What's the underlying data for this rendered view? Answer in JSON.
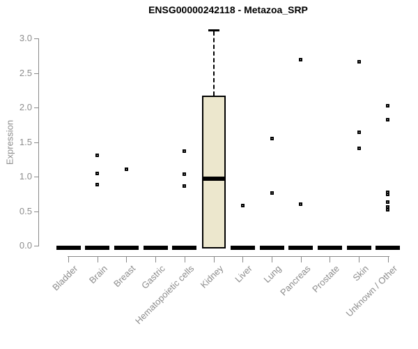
{
  "colors": {
    "box_fill": "#ECE7CD",
    "box_border": "#000000",
    "axis_line": "#888888",
    "axis_text": "#8c8c8c",
    "title_text": "#000000",
    "background": "#ffffff"
  },
  "chart_data": {
    "type": "boxplot",
    "title": "ENSG00000242118 - Metazoa_SRP",
    "xlabel": "",
    "ylabel": "Expression",
    "ylim": [
      0.0,
      3.0
    ],
    "yticks": [
      "0.0",
      "0.5",
      "1.0",
      "1.5",
      "2.0",
      "2.5",
      "3.0"
    ],
    "grid": false,
    "legend": null,
    "categories": [
      "Bladder",
      "Brain",
      "Breast",
      "Gastric",
      "Hematopoietic cells",
      "Kidney",
      "Liver",
      "Lung",
      "Pancreas",
      "Prostate",
      "Skin",
      "Unknown / Other"
    ],
    "boxes": [
      {
        "category": "Bladder",
        "median": 0.0,
        "q1": 0.0,
        "q3": 0.0,
        "whisker_low": 0.0,
        "whisker_high": 0.0,
        "outliers": []
      },
      {
        "category": "Brain",
        "median": 0.0,
        "q1": 0.0,
        "q3": 0.0,
        "whisker_low": 0.0,
        "whisker_high": 0.0,
        "outliers": [
          1.31,
          1.05,
          0.88
        ]
      },
      {
        "category": "Breast",
        "median": 0.0,
        "q1": 0.0,
        "q3": 0.0,
        "whisker_low": 0.0,
        "whisker_high": 0.0,
        "outliers": [
          1.11
        ]
      },
      {
        "category": "Gastric",
        "median": 0.0,
        "q1": 0.0,
        "q3": 0.0,
        "whisker_low": 0.0,
        "whisker_high": 0.0,
        "outliers": []
      },
      {
        "category": "Hematopoietic cells",
        "median": 0.0,
        "q1": 0.0,
        "q3": 0.0,
        "whisker_low": 0.0,
        "whisker_high": 0.0,
        "outliers": [
          1.37,
          1.04,
          0.86
        ]
      },
      {
        "category": "Kidney",
        "median": 1.0,
        "q1": 0.0,
        "q3": 2.17,
        "whisker_low": 0.0,
        "whisker_high": 3.12,
        "outliers": []
      },
      {
        "category": "Liver",
        "median": 0.0,
        "q1": 0.0,
        "q3": 0.0,
        "whisker_low": 0.0,
        "whisker_high": 0.0,
        "outliers": [
          0.58
        ]
      },
      {
        "category": "Lung",
        "median": 0.0,
        "q1": 0.0,
        "q3": 0.0,
        "whisker_low": 0.0,
        "whisker_high": 0.0,
        "outliers": [
          1.55,
          0.76
        ]
      },
      {
        "category": "Pancreas",
        "median": 0.0,
        "q1": 0.0,
        "q3": 0.0,
        "whisker_low": 0.0,
        "whisker_high": 0.0,
        "outliers": [
          2.69,
          0.6
        ]
      },
      {
        "category": "Prostate",
        "median": 0.0,
        "q1": 0.0,
        "q3": 0.0,
        "whisker_low": 0.0,
        "whisker_high": 0.0,
        "outliers": []
      },
      {
        "category": "Skin",
        "median": 0.0,
        "q1": 0.0,
        "q3": 0.0,
        "whisker_low": 0.0,
        "whisker_high": 0.0,
        "outliers": [
          2.66,
          1.64,
          1.41
        ]
      },
      {
        "category": "Unknown / Other",
        "median": 0.0,
        "q1": 0.0,
        "q3": 0.0,
        "whisker_low": 0.0,
        "whisker_high": 0.0,
        "outliers": [
          2.03,
          1.82,
          0.77,
          0.74,
          0.63,
          0.56,
          0.52
        ]
      }
    ]
  }
}
